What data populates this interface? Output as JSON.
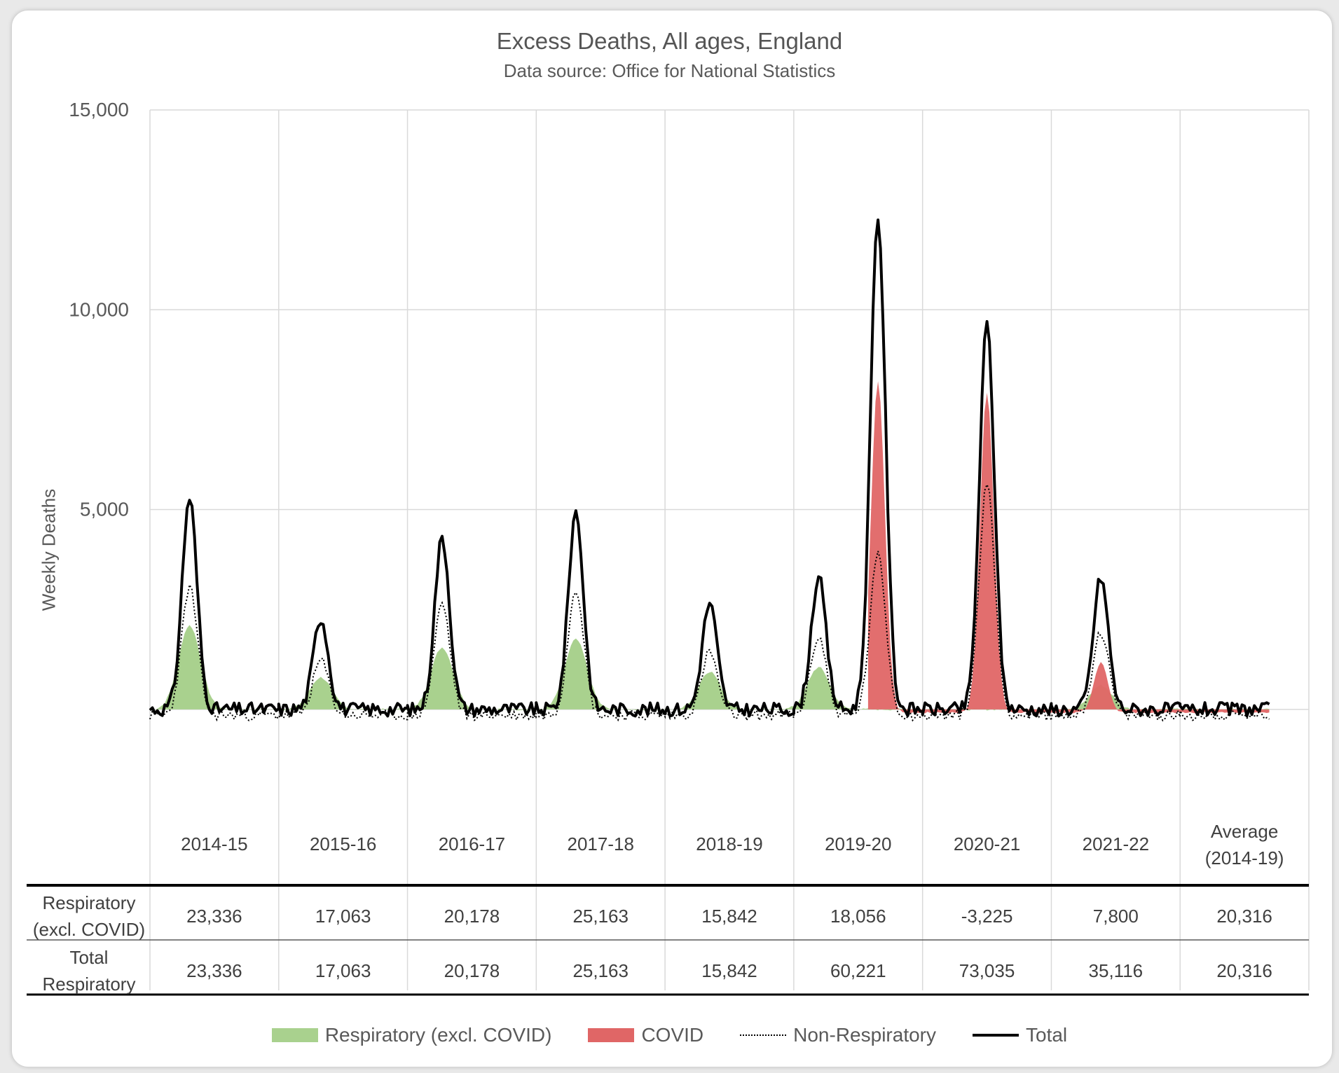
{
  "chart_data": {
    "type": "area",
    "title": "Excess Deaths, All ages, England",
    "subtitle": "Data source: Office for National Statistics",
    "ylabel": "Weekly Deaths",
    "ylim": [
      -3000,
      15000
    ],
    "yticks": [
      {
        "value": 15000,
        "label": "15,000"
      },
      {
        "value": 10000,
        "label": "10,000"
      },
      {
        "value": 5000,
        "label": "5,000"
      }
    ],
    "categories": [
      "2014-15",
      "2015-16",
      "2016-17",
      "2017-18",
      "2018-19",
      "2019-20",
      "2020-21",
      "2021-22"
    ],
    "average_label": [
      "Average",
      "(2014-19)"
    ],
    "weeks_per_season": 52,
    "series": [
      {
        "name": "Total",
        "style": "line",
        "color": "#000000",
        "peaks": [
          {
            "season": 0,
            "week": 16,
            "value": 5300
          },
          {
            "season": 1,
            "week": 17,
            "value": 2300
          },
          {
            "season": 2,
            "week": 14,
            "value": 4300
          },
          {
            "season": 3,
            "week": 16,
            "value": 4950
          },
          {
            "season": 4,
            "week": 18,
            "value": 2650
          },
          {
            "season": 5,
            "week": 10,
            "value": 3300
          },
          {
            "season": 5,
            "week": 34,
            "value": 12300
          },
          {
            "season": 6,
            "week": 26,
            "value": 9650
          },
          {
            "season": 7,
            "week": 20,
            "value": 3300
          }
        ]
      },
      {
        "name": "Non-Respiratory",
        "style": "dotted",
        "color": "#000000",
        "peaks": [
          {
            "season": 0,
            "week": 16,
            "value": 3200
          },
          {
            "season": 2,
            "week": 14,
            "value": 2800
          },
          {
            "season": 3,
            "week": 16,
            "value": 3200
          },
          {
            "season": 5,
            "week": 34,
            "value": 4000
          },
          {
            "season": 7,
            "week": 20,
            "value": 2100
          }
        ]
      },
      {
        "name": "Respiratory (excl. COVID)",
        "style": "area",
        "color": "#a9d18e",
        "peaks": [
          {
            "season": 0,
            "week": 16,
            "value": 2100
          },
          {
            "season": 1,
            "week": 17,
            "value": 800
          },
          {
            "season": 2,
            "week": 14,
            "value": 1550
          },
          {
            "season": 3,
            "week": 16,
            "value": 1750
          },
          {
            "season": 4,
            "week": 18,
            "value": 950
          },
          {
            "season": 5,
            "week": 10,
            "value": 1050
          },
          {
            "season": 7,
            "week": 20,
            "value": 600
          }
        ]
      },
      {
        "name": "COVID",
        "style": "area",
        "color": "#e06666",
        "peaks": [
          {
            "season": 5,
            "week": 34,
            "value": 8300
          },
          {
            "season": 6,
            "week": 26,
            "value": 8000
          },
          {
            "season": 7,
            "week": 20,
            "value": 1250
          }
        ]
      }
    ],
    "table": {
      "rows": [
        {
          "label": [
            "Respiratory",
            "(excl. COVID)"
          ],
          "values": [
            "23,336",
            "17,063",
            "20,178",
            "25,163",
            "15,842",
            "18,056",
            "-3,225",
            "7,800",
            "20,316"
          ]
        },
        {
          "label": [
            "Total",
            "Respiratory"
          ],
          "values": [
            "23,336",
            "17,063",
            "20,178",
            "25,163",
            "15,842",
            "60,221",
            "73,035",
            "35,116",
            "20,316"
          ]
        }
      ]
    },
    "legend": [
      {
        "name": "Respiratory (excl. COVID)",
        "kind": "area",
        "color": "#a9d18e"
      },
      {
        "name": "COVID",
        "kind": "area",
        "color": "#e06666"
      },
      {
        "name": "Non-Respiratory",
        "kind": "dotted",
        "color": "#000000"
      },
      {
        "name": "Total",
        "kind": "line",
        "color": "#000000"
      }
    ]
  }
}
